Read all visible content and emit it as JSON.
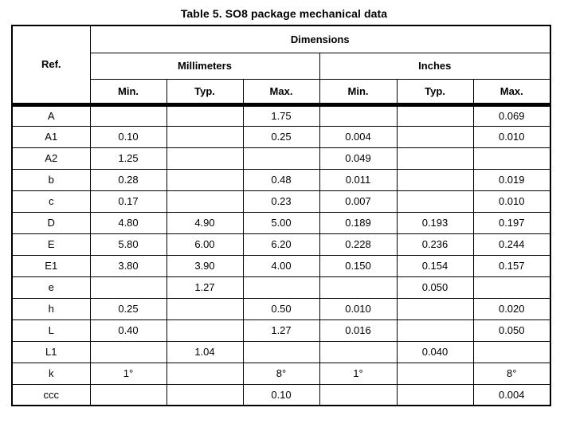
{
  "page": {
    "title": "Table 5. SO8 package mechanical data"
  },
  "table": {
    "header": {
      "ref": "Ref.",
      "dimensions": "Dimensions",
      "unit_groups": [
        "Millimeters",
        "Inches"
      ],
      "columns": [
        "Min.",
        "Typ.",
        "Max."
      ]
    },
    "rows": [
      {
        "ref": "A",
        "mm": [
          "",
          "",
          "1.75"
        ],
        "inches": [
          "",
          "",
          "0.069"
        ]
      },
      {
        "ref": "A1",
        "mm": [
          "0.10",
          "",
          "0.25"
        ],
        "inches": [
          "0.004",
          "",
          "0.010"
        ]
      },
      {
        "ref": "A2",
        "mm": [
          "1.25",
          "",
          ""
        ],
        "inches": [
          "0.049",
          "",
          ""
        ]
      },
      {
        "ref": "b",
        "mm": [
          "0.28",
          "",
          "0.48"
        ],
        "inches": [
          "0.011",
          "",
          "0.019"
        ]
      },
      {
        "ref": "c",
        "mm": [
          "0.17",
          "",
          "0.23"
        ],
        "inches": [
          "0.007",
          "",
          "0.010"
        ]
      },
      {
        "ref": "D",
        "mm": [
          "4.80",
          "4.90",
          "5.00"
        ],
        "inches": [
          "0.189",
          "0.193",
          "0.197"
        ]
      },
      {
        "ref": "E",
        "mm": [
          "5.80",
          "6.00",
          "6.20"
        ],
        "inches": [
          "0.228",
          "0.236",
          "0.244"
        ]
      },
      {
        "ref": "E1",
        "mm": [
          "3.80",
          "3.90",
          "4.00"
        ],
        "inches": [
          "0.150",
          "0.154",
          "0.157"
        ]
      },
      {
        "ref": "e",
        "mm": [
          "",
          "1.27",
          ""
        ],
        "inches": [
          "",
          "0.050",
          ""
        ]
      },
      {
        "ref": "h",
        "mm": [
          "0.25",
          "",
          "0.50"
        ],
        "inches": [
          "0.010",
          "",
          "0.020"
        ]
      },
      {
        "ref": "L",
        "mm": [
          "0.40",
          "",
          "1.27"
        ],
        "inches": [
          "0.016",
          "",
          "0.050"
        ]
      },
      {
        "ref": "L1",
        "mm": [
          "",
          "1.04",
          ""
        ],
        "inches": [
          "",
          "0.040",
          ""
        ]
      },
      {
        "ref": "k",
        "mm": [
          "1°",
          "",
          "8°"
        ],
        "inches": [
          "1°",
          "",
          "8°"
        ]
      },
      {
        "ref": "ccc",
        "mm": [
          "",
          "",
          "0.10"
        ],
        "inches": [
          "",
          "",
          "0.004"
        ]
      }
    ]
  },
  "colors": {
    "border": "#000000",
    "text": "#000000",
    "background": "#ffffff"
  }
}
